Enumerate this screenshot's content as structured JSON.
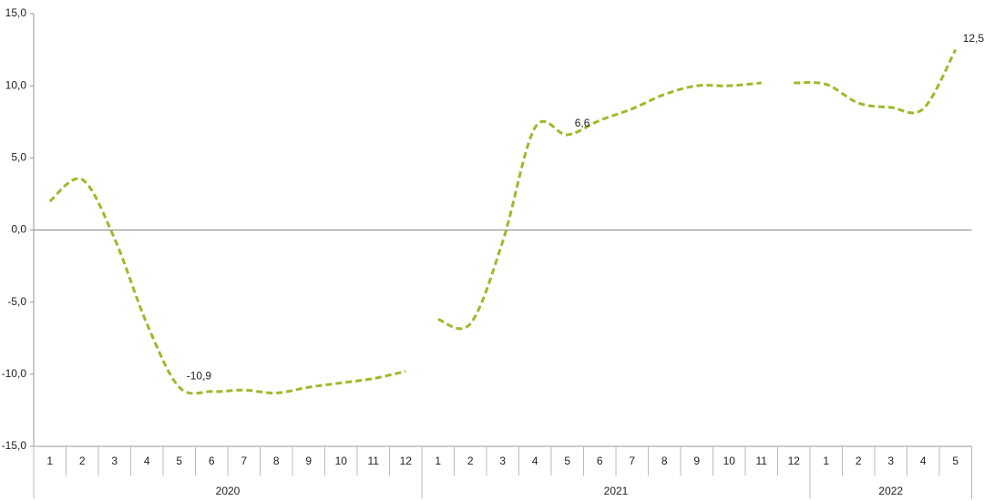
{
  "chart_data": {
    "type": "line",
    "category_groups": [
      {
        "name": "2020",
        "categories": [
          "1",
          "2",
          "3",
          "4",
          "5",
          "6",
          "7",
          "8",
          "9",
          "10",
          "11",
          "12"
        ]
      },
      {
        "name": "2021",
        "categories": [
          "1",
          "2",
          "3",
          "4",
          "5",
          "6",
          "7",
          "8",
          "9",
          "10",
          "11",
          "12"
        ]
      },
      {
        "name": "2022",
        "categories": [
          "1",
          "2",
          "3",
          "4",
          "5"
        ]
      }
    ],
    "series": [
      {
        "color": "#9bbb2a",
        "values": [
          2.0,
          3.5,
          -0.6,
          -6.5,
          -10.9,
          -11.2,
          -11.1,
          -11.3,
          -10.9,
          -10.6,
          -10.3,
          -9.8,
          null,
          null,
          null,
          null,
          null,
          null,
          null,
          null,
          null,
          null,
          null,
          null,
          null,
          null,
          null,
          null,
          null
        ],
        "value_labels": [
          null,
          null,
          null,
          null,
          "-10,9",
          null,
          null,
          null,
          null,
          null,
          null,
          null,
          null,
          null,
          null,
          null,
          null,
          null,
          null,
          null,
          null,
          null,
          null,
          null,
          null,
          null,
          null,
          null,
          null
        ]
      },
      {
        "color": "#9bbb2a",
        "values": [
          null,
          null,
          null,
          null,
          null,
          null,
          null,
          null,
          null,
          null,
          null,
          null,
          -6.2,
          -6.5,
          -0.8,
          7.1,
          6.6,
          7.6,
          8.4,
          9.4,
          10.0,
          10.0,
          10.2,
          null,
          null,
          null,
          null,
          null,
          null
        ],
        "value_labels": [
          null,
          null,
          null,
          null,
          null,
          null,
          null,
          null,
          null,
          null,
          null,
          null,
          null,
          null,
          null,
          null,
          "6,6",
          null,
          null,
          null,
          null,
          null,
          null,
          null,
          null,
          null,
          null,
          null,
          null
        ]
      },
      {
        "color": "#9bbb2a",
        "values": [
          null,
          null,
          null,
          null,
          null,
          null,
          null,
          null,
          null,
          null,
          null,
          null,
          null,
          null,
          null,
          null,
          null,
          null,
          null,
          null,
          null,
          null,
          null,
          10.2,
          10.1,
          8.8,
          8.5,
          8.4,
          12.5
        ],
        "value_labels": [
          null,
          null,
          null,
          null,
          null,
          null,
          null,
          null,
          null,
          null,
          null,
          null,
          null,
          null,
          null,
          null,
          null,
          null,
          null,
          null,
          null,
          null,
          null,
          null,
          null,
          null,
          null,
          null,
          "12,5"
        ]
      }
    ],
    "ylim": [
      -15,
      15
    ],
    "yticks": [
      {
        "value": -15,
        "label": "-15,0"
      },
      {
        "value": -10,
        "label": "-10,0"
      },
      {
        "value": -5,
        "label": "-5,0"
      },
      {
        "value": 0,
        "label": "0,0"
      },
      {
        "value": 5,
        "label": "5,0"
      },
      {
        "value": 10,
        "label": "10,0"
      },
      {
        "value": 15,
        "label": "15,0"
      }
    ]
  }
}
